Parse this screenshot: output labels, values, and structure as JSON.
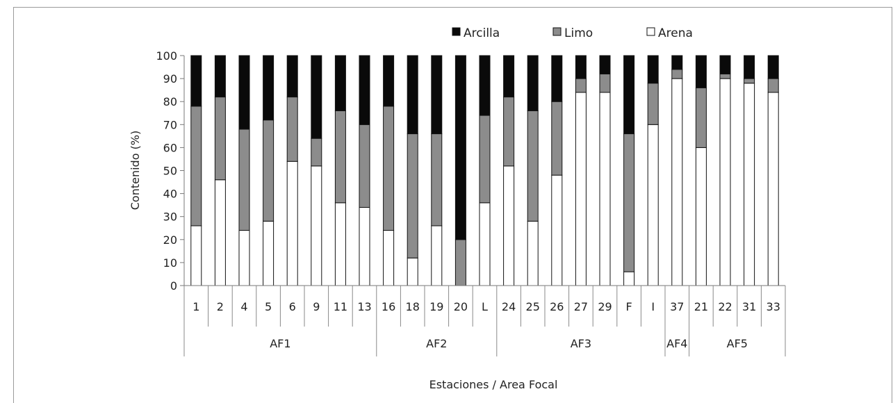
{
  "chart_data": {
    "type": "bar",
    "stacked": true,
    "ylabel": "Contenido (%)",
    "xlabel": "Estaciones / Area Focal",
    "ylim": [
      0,
      100
    ],
    "yticks": [
      0,
      10,
      20,
      30,
      40,
      50,
      60,
      70,
      80,
      90,
      100
    ],
    "grid": false,
    "legend_position": "top-right",
    "categories": [
      "1",
      "2",
      "4",
      "5",
      "6",
      "9",
      "11",
      "13",
      "16",
      "18",
      "19",
      "20",
      "L",
      "24",
      "25",
      "26",
      "27",
      "29",
      "F",
      "I",
      "37",
      "21",
      "22",
      "31",
      "33"
    ],
    "groups": [
      {
        "label": "AF1",
        "count": 8
      },
      {
        "label": "AF2",
        "count": 5
      },
      {
        "label": "AF3",
        "count": 7
      },
      {
        "label": "AF4",
        "count": 1
      },
      {
        "label": "AF5",
        "count": 4
      }
    ],
    "series": [
      {
        "name": "Arena",
        "color": "#ffffff",
        "values": [
          26,
          46,
          24,
          28,
          54,
          52,
          36,
          34,
          24,
          12,
          26,
          0,
          36,
          52,
          28,
          48,
          84,
          84,
          6,
          70,
          90,
          60,
          90,
          88,
          84
        ]
      },
      {
        "name": "Limo",
        "color": "#8c8c8c",
        "values": [
          52,
          36,
          44,
          44,
          28,
          12,
          40,
          36,
          54,
          54,
          40,
          20,
          38,
          30,
          48,
          32,
          6,
          8,
          60,
          18,
          4,
          26,
          2,
          2,
          6
        ]
      },
      {
        "name": "Arcilla",
        "color": "#0a0a0a",
        "values": [
          22,
          18,
          32,
          28,
          18,
          36,
          24,
          30,
          22,
          34,
          34,
          80,
          26,
          18,
          24,
          20,
          10,
          8,
          34,
          12,
          6,
          14,
          8,
          10,
          10
        ]
      }
    ],
    "legend_order": [
      "Arcilla",
      "Limo",
      "Arena"
    ]
  }
}
